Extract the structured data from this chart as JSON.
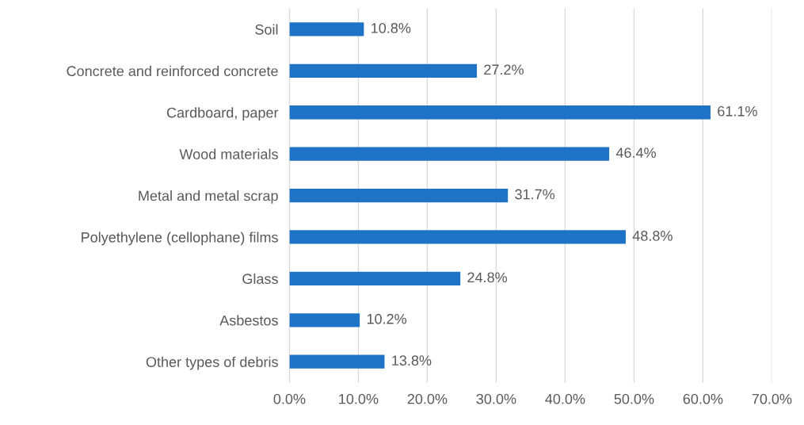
{
  "chart_data": {
    "type": "bar",
    "orientation": "horizontal",
    "categories": [
      "Soil",
      "Concrete and reinforced concrete",
      "Cardboard, paper",
      "Wood materials",
      "Metal and metal scrap",
      "Polyethylene (cellophane) films",
      "Glass",
      "Asbestos",
      "Other types of debris"
    ],
    "values": [
      10.8,
      27.2,
      61.1,
      46.4,
      31.7,
      48.8,
      24.8,
      10.2,
      13.8
    ],
    "value_labels": [
      "10.8%",
      "27.2%",
      "61.1%",
      "46.4%",
      "31.7%",
      "48.8%",
      "24.8%",
      "10.2%",
      "13.8%"
    ],
    "color": "#1f73c6",
    "xlim": [
      0,
      70
    ],
    "xticks": [
      {
        "value": 0,
        "label": "0.0%"
      },
      {
        "value": 10,
        "label": "10.0%"
      },
      {
        "value": 20,
        "label": "20.0%"
      },
      {
        "value": 30,
        "label": "30.0%"
      },
      {
        "value": 40,
        "label": "40.0%"
      },
      {
        "value": 50,
        "label": "50.0%"
      },
      {
        "value": 60,
        "label": "60.0%"
      },
      {
        "value": 70,
        "label": "70.0%"
      }
    ],
    "grid": "x",
    "legend": false
  }
}
